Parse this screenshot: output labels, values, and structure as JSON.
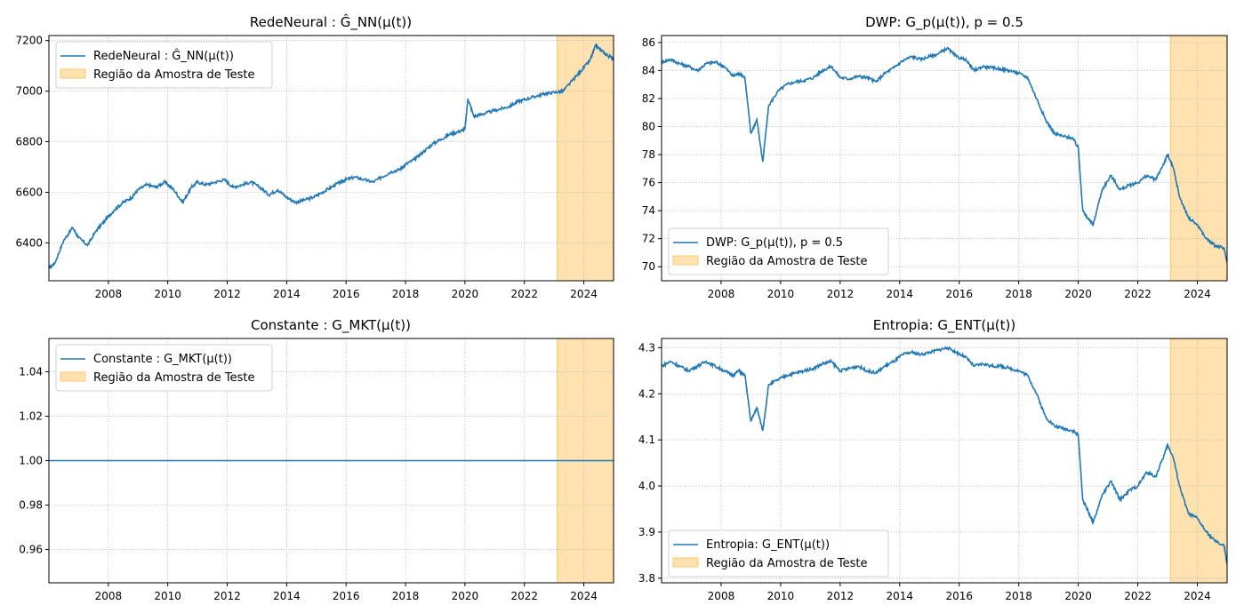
{
  "colors": {
    "line": "#1f77b4",
    "test_fill": "#ffe2b0",
    "test_edge": "#ffc870",
    "grid": "#b0b0b0"
  },
  "chart_data": [
    {
      "type": "line",
      "title": "RedeNeural : Ĝ_NN(μ(t))",
      "legend": [
        "RedeNeural : Ĝ_NN(μ(t))",
        "Região da Amostra de Teste"
      ],
      "legend_position": "upper-left",
      "grid": true,
      "xlim": [
        2006.0,
        2025.0
      ],
      "ylim": [
        6250,
        7220
      ],
      "xticks": [
        2008,
        2010,
        2012,
        2014,
        2016,
        2018,
        2020,
        2022,
        2024
      ],
      "yticks": [
        6400,
        6600,
        6800,
        7000,
        7200
      ],
      "test_region": [
        2023.1,
        2025.0
      ],
      "series": [
        {
          "x": [
            2006.0,
            2006.2,
            2006.5,
            2006.8,
            2007.0,
            2007.3,
            2007.6,
            2007.9,
            2008.2,
            2008.5,
            2008.8,
            2009.0,
            2009.3,
            2009.6,
            2009.9,
            2010.2,
            2010.5,
            2010.8,
            2011.0,
            2011.3,
            2011.6,
            2011.9,
            2012.2,
            2012.5,
            2012.8,
            2013.1,
            2013.4,
            2013.7,
            2014.0,
            2014.3,
            2014.6,
            2014.9,
            2015.2,
            2015.5,
            2015.8,
            2016.0,
            2016.3,
            2016.6,
            2016.9,
            2017.2,
            2017.5,
            2017.8,
            2018.0,
            2018.3,
            2018.6,
            2018.9,
            2019.2,
            2019.5,
            2019.8,
            2020.0,
            2020.1,
            2020.3,
            2020.6,
            2020.9,
            2021.2,
            2021.5,
            2021.8,
            2022.1,
            2022.4,
            2022.7,
            2023.0,
            2023.3,
            2023.6,
            2023.9,
            2024.2,
            2024.4,
            2024.6,
            2024.8,
            2025.0
          ],
          "values": [
            6300,
            6320,
            6410,
            6460,
            6420,
            6390,
            6450,
            6490,
            6530,
            6560,
            6580,
            6610,
            6630,
            6620,
            6640,
            6610,
            6560,
            6620,
            6640,
            6630,
            6640,
            6650,
            6620,
            6630,
            6640,
            6620,
            6590,
            6610,
            6580,
            6560,
            6570,
            6580,
            6600,
            6620,
            6640,
            6650,
            6660,
            6650,
            6640,
            6660,
            6680,
            6690,
            6710,
            6730,
            6760,
            6790,
            6810,
            6830,
            6840,
            6850,
            6970,
            6900,
            6910,
            6920,
            6930,
            6940,
            6960,
            6970,
            6980,
            6990,
            6995,
            7000,
            7040,
            7080,
            7120,
            7180,
            7160,
            7140,
            7130
          ]
        }
      ]
    },
    {
      "type": "line",
      "title": "DWP: G_p(μ(t)),  p = 0.5",
      "legend": [
        "DWP: G_p(μ(t)),  p = 0.5",
        "Região da Amostra de Teste"
      ],
      "legend_position": "lower-left",
      "grid": true,
      "xlim": [
        2006.0,
        2025.0
      ],
      "ylim": [
        69.0,
        86.5
      ],
      "xticks": [
        2008,
        2010,
        2012,
        2014,
        2016,
        2018,
        2020,
        2022,
        2024
      ],
      "yticks": [
        70,
        72,
        74,
        76,
        78,
        80,
        82,
        84,
        86
      ],
      "test_region": [
        2023.1,
        2025.0
      ],
      "series": [
        {
          "x": [
            2006.0,
            2006.3,
            2006.6,
            2006.9,
            2007.2,
            2007.5,
            2007.8,
            2008.1,
            2008.4,
            2008.6,
            2008.8,
            2009.0,
            2009.2,
            2009.4,
            2009.6,
            2009.9,
            2010.2,
            2010.5,
            2010.8,
            2011.1,
            2011.4,
            2011.7,
            2012.0,
            2012.3,
            2012.6,
            2012.9,
            2013.2,
            2013.5,
            2013.8,
            2014.1,
            2014.4,
            2014.7,
            2015.0,
            2015.3,
            2015.6,
            2015.9,
            2016.2,
            2016.5,
            2016.8,
            2017.1,
            2017.4,
            2017.7,
            2018.0,
            2018.3,
            2018.6,
            2018.9,
            2019.2,
            2019.5,
            2019.8,
            2020.0,
            2020.15,
            2020.3,
            2020.5,
            2020.8,
            2021.1,
            2021.4,
            2021.7,
            2022.0,
            2022.3,
            2022.6,
            2022.9,
            2023.0,
            2023.2,
            2023.4,
            2023.7,
            2024.0,
            2024.3,
            2024.6,
            2024.9,
            2025.0
          ],
          "values": [
            84.6,
            84.8,
            84.5,
            84.3,
            84.0,
            84.5,
            84.6,
            84.3,
            83.6,
            83.8,
            83.5,
            79.5,
            80.5,
            77.5,
            81.5,
            82.5,
            83.0,
            83.2,
            83.3,
            83.5,
            84.0,
            84.3,
            83.5,
            83.4,
            83.6,
            83.5,
            83.2,
            83.8,
            84.2,
            84.7,
            85.0,
            84.8,
            85.0,
            85.2,
            85.6,
            85.0,
            84.8,
            84.0,
            84.3,
            84.2,
            84.1,
            84.0,
            83.8,
            83.5,
            82.0,
            80.5,
            79.5,
            79.3,
            79.2,
            78.5,
            74.0,
            73.5,
            73.0,
            75.5,
            76.5,
            75.5,
            75.8,
            76.0,
            76.5,
            76.2,
            77.5,
            78.0,
            77.0,
            75.0,
            73.5,
            73.0,
            72.0,
            71.5,
            71.3,
            70.3
          ]
        }
      ]
    },
    {
      "type": "line",
      "title": "Constante : G_MKT(μ(t))",
      "legend": [
        "Constante : G_MKT(μ(t))",
        "Região da Amostra de Teste"
      ],
      "legend_position": "upper-left",
      "grid": true,
      "xlim": [
        2006.0,
        2025.0
      ],
      "ylim": [
        0.945,
        1.055
      ],
      "xticks": [
        2008,
        2010,
        2012,
        2014,
        2016,
        2018,
        2020,
        2022,
        2024
      ],
      "yticks": [
        0.96,
        0.98,
        1.0,
        1.02,
        1.04
      ],
      "test_region": [
        2023.1,
        2025.0
      ],
      "series": [
        {
          "x": [
            2006.0,
            2025.0
          ],
          "values": [
            1.0,
            1.0
          ]
        }
      ]
    },
    {
      "type": "line",
      "title": "Entropia: G_ENT(μ(t))",
      "legend": [
        "Entropia: G_ENT(μ(t))",
        "Região da Amostra de Teste"
      ],
      "legend_position": "lower-left",
      "grid": true,
      "xlim": [
        2006.0,
        2025.0
      ],
      "ylim": [
        3.79,
        4.32
      ],
      "xticks": [
        2008,
        2010,
        2012,
        2014,
        2016,
        2018,
        2020,
        2022,
        2024
      ],
      "yticks": [
        3.8,
        3.9,
        4.0,
        4.1,
        4.2,
        4.3
      ],
      "test_region": [
        2023.1,
        2025.0
      ],
      "series": [
        {
          "x": [
            2006.0,
            2006.3,
            2006.6,
            2006.9,
            2007.2,
            2007.5,
            2007.8,
            2008.1,
            2008.4,
            2008.6,
            2008.8,
            2009.0,
            2009.2,
            2009.4,
            2009.6,
            2009.9,
            2010.2,
            2010.5,
            2010.8,
            2011.1,
            2011.4,
            2011.7,
            2012.0,
            2012.3,
            2012.6,
            2012.9,
            2013.2,
            2013.5,
            2013.8,
            2014.1,
            2014.4,
            2014.7,
            2015.0,
            2015.3,
            2015.6,
            2015.9,
            2016.2,
            2016.5,
            2016.8,
            2017.1,
            2017.4,
            2017.7,
            2018.0,
            2018.3,
            2018.6,
            2018.9,
            2019.2,
            2019.5,
            2019.8,
            2020.0,
            2020.15,
            2020.3,
            2020.5,
            2020.8,
            2021.1,
            2021.4,
            2021.7,
            2022.0,
            2022.3,
            2022.6,
            2022.9,
            2023.0,
            2023.2,
            2023.4,
            2023.7,
            2024.0,
            2024.3,
            2024.6,
            2024.9,
            2025.0
          ],
          "values": [
            4.26,
            4.27,
            4.26,
            4.25,
            4.26,
            4.27,
            4.26,
            4.25,
            4.24,
            4.25,
            4.24,
            4.14,
            4.17,
            4.12,
            4.22,
            4.23,
            4.24,
            4.245,
            4.25,
            4.255,
            4.265,
            4.27,
            4.25,
            4.255,
            4.26,
            4.25,
            4.245,
            4.26,
            4.27,
            4.285,
            4.29,
            4.285,
            4.29,
            4.295,
            4.3,
            4.29,
            4.28,
            4.26,
            4.265,
            4.26,
            4.26,
            4.255,
            4.25,
            4.24,
            4.2,
            4.15,
            4.13,
            4.125,
            4.12,
            4.11,
            3.97,
            3.95,
            3.92,
            3.98,
            4.01,
            3.97,
            3.99,
            4.0,
            4.03,
            4.02,
            4.07,
            4.09,
            4.06,
            4.0,
            3.94,
            3.93,
            3.9,
            3.88,
            3.87,
            3.83
          ]
        }
      ]
    }
  ]
}
